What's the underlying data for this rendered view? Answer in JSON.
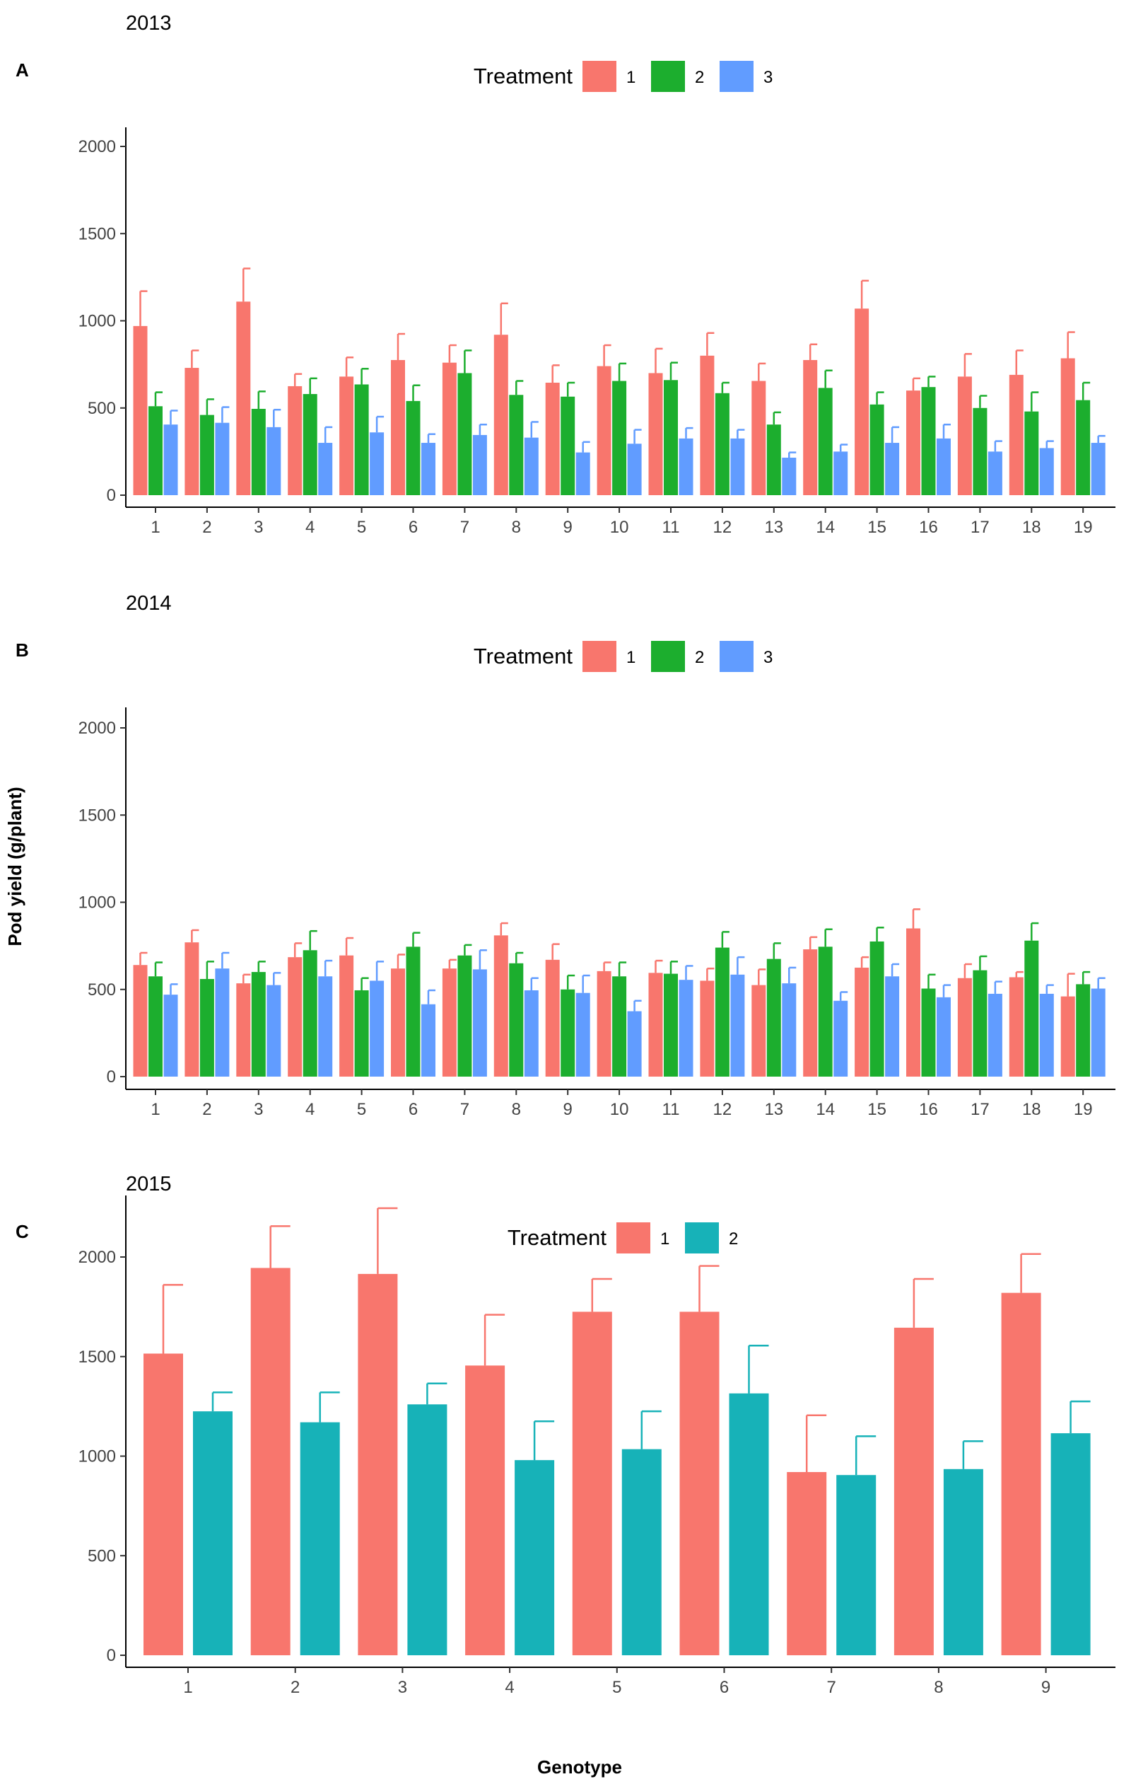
{
  "figure": {
    "ylabel": "Pod yield (g/plant)",
    "xlabel": "Genotype"
  },
  "chart_data": [
    {
      "type": "bar",
      "panel_label": "A",
      "title": "2013",
      "legend": {
        "title": "Treatment",
        "placement": "top-center"
      },
      "categories": [
        "1",
        "2",
        "3",
        "4",
        "5",
        "6",
        "7",
        "8",
        "9",
        "10",
        "11",
        "12",
        "13",
        "14",
        "15",
        "16",
        "17",
        "18",
        "19"
      ],
      "ylim": [
        0,
        2100
      ],
      "yticks": [
        0,
        500,
        1000,
        1500,
        2000
      ],
      "series": [
        {
          "name": "1",
          "color": "#F8766D",
          "values": [
            970,
            730,
            1110,
            625,
            680,
            775,
            760,
            920,
            645,
            740,
            700,
            800,
            655,
            775,
            1070,
            600,
            680,
            690,
            785
          ],
          "errors": [
            200,
            100,
            190,
            70,
            110,
            150,
            100,
            180,
            100,
            120,
            140,
            130,
            100,
            90,
            160,
            70,
            130,
            140,
            150
          ]
        },
        {
          "name": "2",
          "color": "#1CAE2E",
          "values": [
            510,
            460,
            495,
            580,
            635,
            540,
            700,
            575,
            565,
            655,
            660,
            585,
            405,
            615,
            520,
            620,
            500,
            480,
            545
          ],
          "errors": [
            80,
            90,
            100,
            90,
            90,
            90,
            130,
            80,
            80,
            100,
            100,
            60,
            70,
            100,
            70,
            60,
            70,
            110,
            100
          ]
        },
        {
          "name": "3",
          "color": "#619CFF",
          "values": [
            405,
            415,
            390,
            300,
            360,
            300,
            345,
            330,
            245,
            295,
            325,
            325,
            215,
            250,
            300,
            325,
            250,
            270,
            300
          ],
          "errors": [
            80,
            90,
            100,
            90,
            90,
            50,
            60,
            90,
            60,
            80,
            60,
            50,
            30,
            40,
            90,
            80,
            60,
            40,
            40
          ]
        }
      ]
    },
    {
      "type": "bar",
      "panel_label": "B",
      "title": "2014",
      "legend": {
        "title": "Treatment",
        "placement": "top-center"
      },
      "categories": [
        "1",
        "2",
        "3",
        "4",
        "5",
        "6",
        "7",
        "8",
        "9",
        "10",
        "11",
        "12",
        "13",
        "14",
        "15",
        "16",
        "17",
        "18",
        "19"
      ],
      "ylim": [
        0,
        2100
      ],
      "yticks": [
        0,
        500,
        1000,
        1500,
        2000
      ],
      "series": [
        {
          "name": "1",
          "color": "#F8766D",
          "values": [
            640,
            770,
            535,
            685,
            695,
            620,
            620,
            810,
            670,
            605,
            595,
            550,
            525,
            730,
            625,
            850,
            565,
            570,
            460
          ],
          "errors": [
            70,
            70,
            50,
            80,
            100,
            80,
            50,
            70,
            90,
            50,
            70,
            70,
            90,
            70,
            60,
            110,
            80,
            30,
            130
          ]
        },
        {
          "name": "2",
          "color": "#1CAE2E",
          "values": [
            575,
            560,
            600,
            725,
            495,
            745,
            695,
            650,
            500,
            575,
            590,
            740,
            675,
            745,
            775,
            505,
            610,
            780,
            530
          ],
          "errors": [
            80,
            100,
            60,
            110,
            70,
            80,
            60,
            60,
            80,
            80,
            70,
            90,
            90,
            100,
            80,
            80,
            80,
            100,
            70
          ]
        },
        {
          "name": "3",
          "color": "#619CFF",
          "values": [
            470,
            620,
            525,
            575,
            550,
            415,
            615,
            495,
            480,
            375,
            555,
            585,
            535,
            435,
            575,
            455,
            475,
            475,
            505
          ],
          "errors": [
            60,
            90,
            70,
            90,
            110,
            80,
            110,
            70,
            100,
            60,
            80,
            100,
            90,
            50,
            70,
            70,
            70,
            50,
            60
          ]
        }
      ]
    },
    {
      "type": "bar",
      "panel_label": "C",
      "title": "2015",
      "legend": {
        "title": "Treatment",
        "placement": "top-center"
      },
      "categories": [
        "1",
        "2",
        "3",
        "4",
        "5",
        "6",
        "7",
        "8",
        "9"
      ],
      "ylim": [
        -80,
        2330
      ],
      "yticks": [
        0,
        500,
        1000,
        1500,
        2000
      ],
      "series": [
        {
          "name": "1",
          "color": "#F8766D",
          "values": [
            1515,
            1945,
            1915,
            1455,
            1725,
            1725,
            920,
            1645,
            1820
          ],
          "errors": [
            345,
            210,
            330,
            255,
            165,
            230,
            285,
            245,
            195
          ]
        },
        {
          "name": "2",
          "color": "#17B2B8",
          "values": [
            1225,
            1170,
            1260,
            980,
            1035,
            1315,
            905,
            935,
            1115
          ],
          "errors": [
            95,
            150,
            105,
            195,
            190,
            240,
            195,
            140,
            160
          ]
        }
      ]
    }
  ]
}
